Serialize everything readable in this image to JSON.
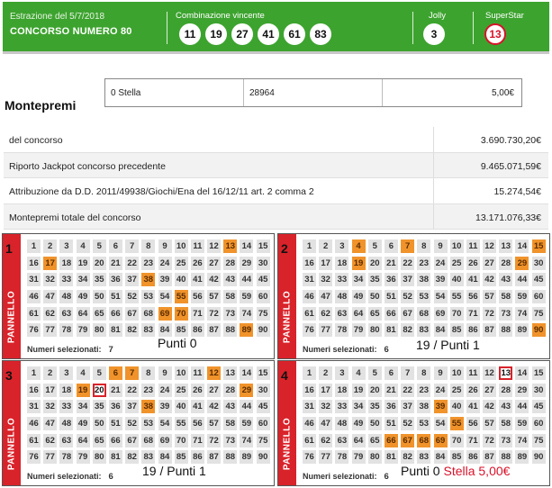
{
  "header": {
    "extraction_date": "Estrazione del 5/7/2018",
    "contest": "CONCORSO NUMERO 80",
    "winning_label": "Combinazione vincente",
    "winning_numbers": [
      "11",
      "19",
      "27",
      "41",
      "61",
      "83"
    ],
    "jolly_label": "Jolly",
    "jolly": "3",
    "superstar_label": "SuperStar",
    "superstar": "13",
    "superstar_color": "#d8132a",
    "accent_green": "#3da32f"
  },
  "montepremi": {
    "title": "Montepremi",
    "stella_row": {
      "category": "0 Stella",
      "winners": "28964",
      "prize": "5,00€"
    },
    "rows": [
      {
        "label": "del concorso",
        "value": "3.690.730,20€"
      },
      {
        "label": "Riporto Jackpot concorso precedente",
        "value": "9.465.071,59€"
      },
      {
        "label": "Attribuzione da D.D. 2011/49938/Giochi/Ena del 16/12/11 art. 2 comma 2",
        "value": "15.274,54€"
      },
      {
        "label": "Montepremi totale del concorso",
        "value": "13.171.076,33€"
      }
    ]
  },
  "panels": [
    {
      "number": "1",
      "word": "PANNELLO",
      "selected_label": "Numeri selezionati:",
      "selected_count": "7",
      "selected": [
        13,
        17,
        38,
        55,
        69,
        70,
        89
      ],
      "hits": [],
      "note": "Punti 0",
      "note_stella": ""
    },
    {
      "number": "2",
      "word": "PANNELLO",
      "selected_label": "Numeri selezionati:",
      "selected_count": "6",
      "selected": [
        4,
        7,
        15,
        19,
        29,
        90
      ],
      "hits": [],
      "note": "19 / Punti 1",
      "note_stella": ""
    },
    {
      "number": "3",
      "word": "PANNELLO",
      "selected_label": "Numeri selezionati:",
      "selected_count": "6",
      "selected": [
        6,
        7,
        12,
        19,
        29,
        38
      ],
      "hits": [
        20
      ],
      "note": "19 / Punti 1",
      "note_stella": ""
    },
    {
      "number": "4",
      "word": "PANNELLO",
      "selected_label": "Numeri selezionati:",
      "selected_count": "6",
      "selected": [
        39,
        55,
        66,
        67,
        68,
        69
      ],
      "hits": [
        13
      ],
      "note": "Punti 0",
      "note_stella": "Stella 5,00€"
    }
  ]
}
